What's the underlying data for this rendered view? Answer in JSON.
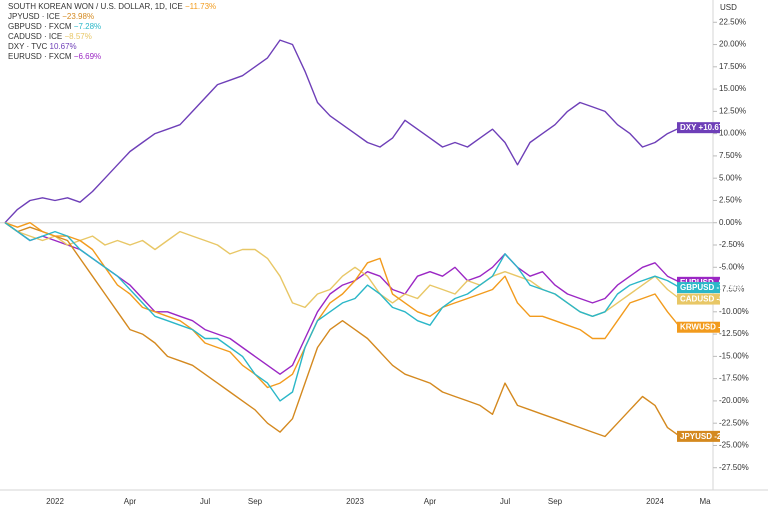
{
  "chart_data": {
    "type": "line",
    "axis_unit": "USD",
    "categories": [
      null,
      null,
      null,
      null,
      "2022",
      null,
      null,
      null,
      null,
      null,
      "Apr",
      null,
      null,
      null,
      null,
      null,
      "Jul",
      null,
      null,
      null,
      "Sep",
      null,
      null,
      null,
      null,
      null,
      null,
      null,
      "2023",
      null,
      null,
      null,
      null,
      null,
      "Apr",
      null,
      null,
      null,
      null,
      null,
      "Jul",
      null,
      null,
      null,
      "Sep",
      null,
      null,
      null,
      null,
      null,
      null,
      null,
      "2024",
      null,
      null,
      null,
      "Ma"
    ],
    "ylim": [
      -30,
      25
    ],
    "yticks": [
      {
        "value": 22.5,
        "label": "22.50%"
      },
      {
        "value": 20,
        "label": "20.00%"
      },
      {
        "value": 17.5,
        "label": "17.50%"
      },
      {
        "value": 15,
        "label": "15.00%"
      },
      {
        "value": 12.5,
        "label": "12.50%"
      },
      {
        "value": 10,
        "label": "10.00%"
      },
      {
        "value": 7.5,
        "label": "7.50%"
      },
      {
        "value": 5,
        "label": "5.00%"
      },
      {
        "value": 2.5,
        "label": "2.50%"
      },
      {
        "value": 0,
        "label": "0.00%"
      },
      {
        "value": -2.5,
        "label": "-2.50%"
      },
      {
        "value": -5,
        "label": "-5.00%"
      },
      {
        "value": -7.5,
        "label": "-7.50%"
      },
      {
        "value": -10,
        "label": "-10.00%"
      },
      {
        "value": -12.5,
        "label": "-12.50%"
      },
      {
        "value": -15,
        "label": "-15.00%"
      },
      {
        "value": -17.5,
        "label": "-17.50%"
      },
      {
        "value": -20,
        "label": "-20.00%"
      },
      {
        "value": -22.5,
        "label": "-22.50%"
      },
      {
        "value": -25,
        "label": "-25.00%"
      },
      {
        "value": -27.5,
        "label": "-27.50%"
      }
    ],
    "series": [
      {
        "name": "KRWUSD",
        "legend": "SOUTH KOREAN WON / U.S. DOLLAR, 1D, ICE",
        "legend_label": "−11.73%",
        "tag_label": "-11.73%",
        "color": "#f29b1d",
        "values": [
          0,
          -0.5,
          0,
          -1,
          -1.5,
          -1.5,
          -2,
          -3,
          -5,
          -7,
          -8,
          -9.5,
          -10,
          -10.5,
          -11,
          -12,
          -13.5,
          -14,
          -14.5,
          -16,
          -17,
          -18.5,
          -18,
          -17,
          -14,
          -11,
          -9,
          -8,
          -6.5,
          -4.5,
          -4,
          -8,
          -9,
          -10,
          -10.5,
          -9.5,
          -9,
          -8.5,
          -8,
          -7.5,
          -6,
          -9,
          -10.5,
          -10.5,
          -11,
          -11.5,
          -12,
          -13,
          -13,
          -11,
          -9,
          -8.5,
          -8,
          -10,
          -11.73,
          null,
          null
        ]
      },
      {
        "name": "JPYUSD",
        "legend": "JPYUSD · ICE",
        "legend_label": "−23.98%",
        "tag_label": "-23.98%",
        "color": "#d4891f",
        "values": [
          0,
          -1,
          -0.5,
          -1,
          -1.5,
          -2,
          -4,
          -6,
          -8,
          -10,
          -12,
          -12.5,
          -13.5,
          -15,
          -15.5,
          -16,
          -17,
          -18,
          -19,
          -20,
          -21,
          -22.5,
          -23.5,
          -22,
          -18,
          -14,
          -12,
          -11,
          -12,
          -13,
          -14.5,
          -16,
          -17,
          -17.5,
          -18,
          -19,
          -19.5,
          -20,
          -20.5,
          -21.5,
          -18,
          -20.5,
          -21,
          -21.5,
          -22,
          -22.5,
          -23,
          -23.5,
          -24,
          -22.5,
          -21,
          -19.5,
          -20.5,
          -23,
          -23.98,
          null,
          null
        ]
      },
      {
        "name": "GBPUSD",
        "legend": "GBPUSD · FXCM",
        "legend_label": "−7.28%",
        "tag_label": "-7.28%",
        "color": "#2bb7c8",
        "values": [
          0,
          -1,
          -2,
          -1.5,
          -1,
          -1.5,
          -3,
          -4,
          -5,
          -6,
          -7.5,
          -9,
          -10.5,
          -11,
          -11.5,
          -12,
          -13,
          -13,
          -14,
          -15,
          -17,
          -18,
          -20,
          -19,
          -14,
          -11,
          -10,
          -9,
          -8.5,
          -7,
          -8,
          -9.5,
          -10,
          -11,
          -11.5,
          -9.5,
          -8.5,
          -8,
          -7,
          -6,
          -3.5,
          -5,
          -7,
          -7.5,
          -8,
          -9,
          -10,
          -10.5,
          -10,
          -8,
          -7,
          -6.5,
          -6,
          -6.5,
          -7.28,
          null,
          null
        ]
      },
      {
        "name": "CADUSD",
        "legend": "CADUSD · ICE",
        "legend_label": "−8.57%",
        "tag_label": "-8.57%",
        "color": "#e8c766",
        "values": [
          0,
          -1,
          -1.5,
          -2,
          -1.5,
          -2.5,
          -2,
          -1.5,
          -2.5,
          -2,
          -2.5,
          -2,
          -3,
          -2,
          -1,
          -1.5,
          -2,
          -2.5,
          -3.5,
          -3,
          -3,
          -4,
          -6,
          -9,
          -9.5,
          -8,
          -7.5,
          -6,
          -5,
          -6,
          -8,
          -9,
          -8,
          -8.5,
          -7,
          -7.5,
          -8,
          -6.5,
          -7,
          -6,
          -5.5,
          -6,
          -6.5,
          -7.5,
          -8,
          -9,
          -10,
          -10.5,
          -10,
          -9,
          -8,
          -7,
          -6,
          -7.5,
          -8.57,
          null,
          null
        ]
      },
      {
        "name": "DXY",
        "legend": "DXY · TVC",
        "legend_label": "10.67%",
        "tag_label": "+10.67%",
        "color": "#6e3fb8",
        "values": [
          0,
          1.5,
          2.5,
          2.8,
          2.5,
          2.8,
          2.3,
          3.5,
          5,
          6.5,
          8,
          9,
          10,
          10.5,
          11,
          12.5,
          14,
          15.5,
          16,
          16.5,
          17.5,
          18.5,
          20.5,
          20,
          17,
          13.5,
          12,
          11,
          10,
          9,
          8.5,
          9.5,
          11.5,
          10.5,
          9.5,
          8.5,
          9,
          8.5,
          9.5,
          10.5,
          9,
          6.5,
          9,
          10,
          11,
          12.5,
          13.5,
          13,
          12.5,
          11,
          10,
          8.5,
          9,
          10,
          10.67,
          null,
          null
        ]
      },
      {
        "name": "EURUSD",
        "legend": "EURUSD · FXCM",
        "legend_label": "−6.69%",
        "tag_label": "-6.69%",
        "color": "#9b27c4",
        "values": [
          0,
          -1,
          -2,
          -1.5,
          -2,
          -2.5,
          -3,
          -4,
          -5,
          -6,
          -7,
          -8.5,
          -10,
          -10,
          -10.5,
          -11,
          -12,
          -12.5,
          -13,
          -14,
          -15,
          -16,
          -17,
          -16,
          -13,
          -10,
          -8,
          -7,
          -6.5,
          -5.5,
          -6,
          -7.5,
          -8,
          -6,
          -5.5,
          -6,
          -5,
          -6.5,
          -6,
          -5,
          -3.5,
          -5,
          -6,
          -5.5,
          -7,
          -8,
          -8.5,
          -9,
          -8.5,
          -7,
          -6,
          -5,
          -4.5,
          -6,
          -6.69,
          null,
          null
        ]
      }
    ]
  }
}
